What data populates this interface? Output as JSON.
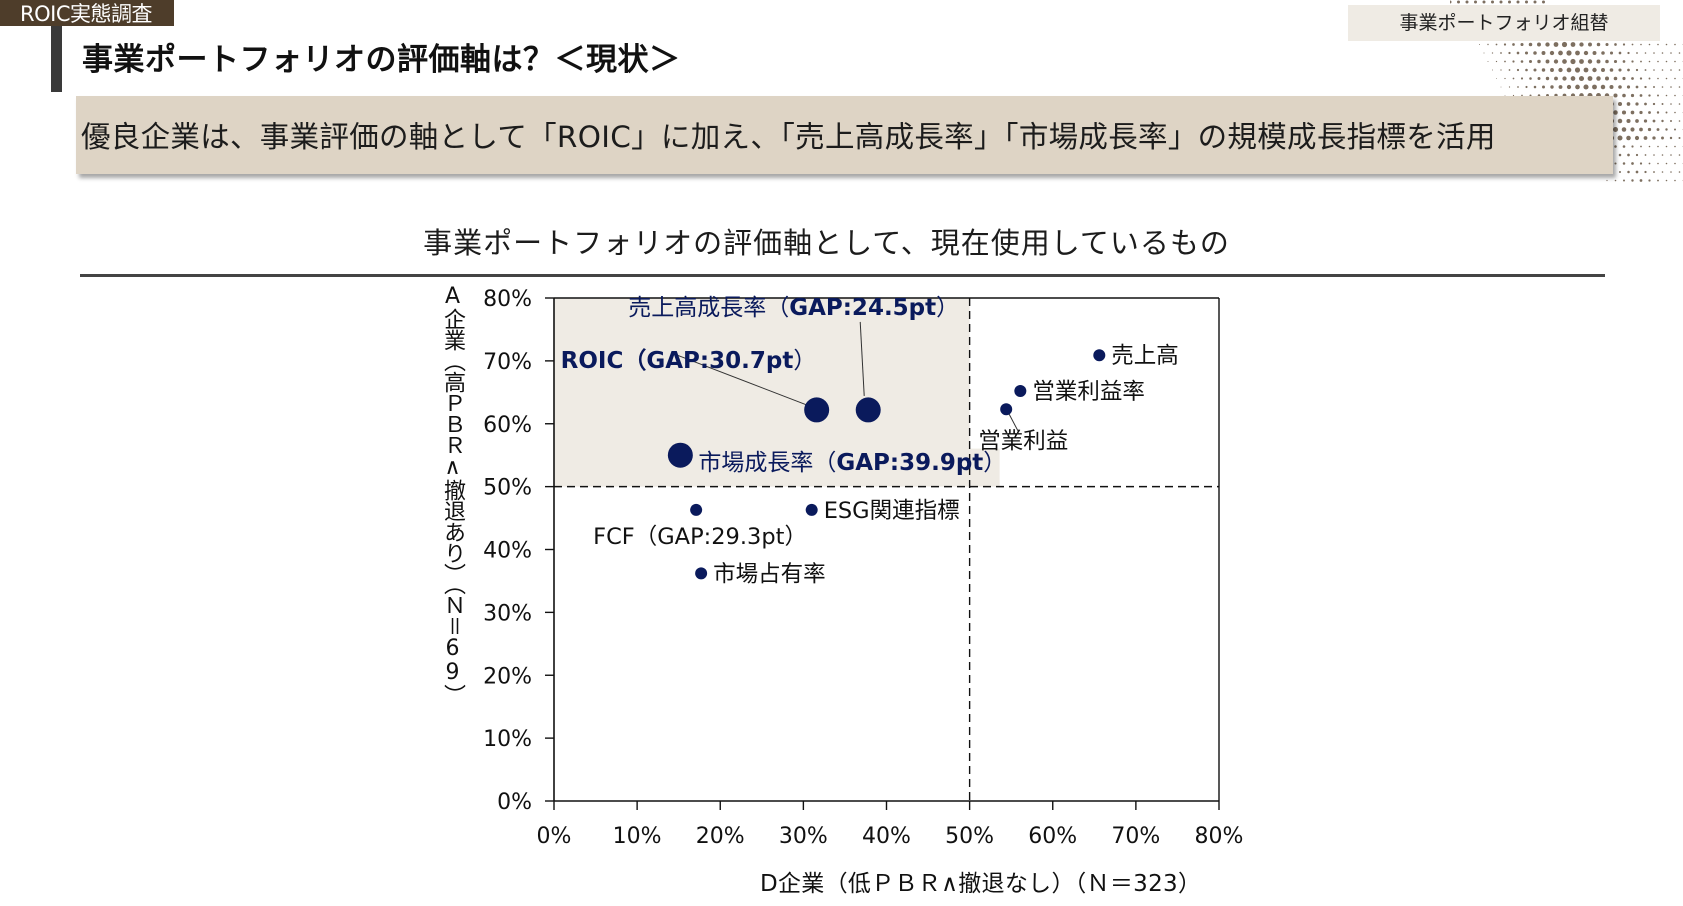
{
  "header": {
    "section_tag": "ROIC実態調査",
    "page_title": "事業ポートフォリオの評価軸は？＜現状＞",
    "category_tag": "事業ポートフォリオ組替"
  },
  "summary": {
    "text": "優良企業は、事業評価の軸として「ROIC」に加え、「売上高成長率」「市場成長率」の規模成長指標を活用"
  },
  "colors": {
    "section_tag_bg": "#4e3d2a",
    "summary_bg": "#ded4c5",
    "highlight_quadrant": "#efebe4",
    "point_color": "#0a1a5c"
  },
  "chart_data": {
    "type": "scatter",
    "title": "事業ポートフォリオの評価軸として、現在使用しているもの",
    "xlabel": "D企業（低ＰＢＲ∧撤退なし）（Ｎ＝323）",
    "ylabel": "A企業（高ＰＢＲ∧撤退あり）（Ｎ＝69）",
    "xlim": [
      0,
      80
    ],
    "ylim": [
      0,
      80
    ],
    "x_ticks": [
      "0%",
      "10%",
      "20%",
      "30%",
      "40%",
      "50%",
      "60%",
      "70%",
      "80%"
    ],
    "y_ticks": [
      "0%",
      "10%",
      "20%",
      "30%",
      "40%",
      "50%",
      "60%",
      "70%",
      "80%"
    ],
    "reference_lines": {
      "x": 50,
      "y": 50,
      "style": "dashed"
    },
    "highlight_region": {
      "x": [
        0,
        50
      ],
      "y": [
        50,
        80
      ]
    },
    "grid": false,
    "points": [
      {
        "name": "売上高成長率",
        "gap": "GAP:24.5pt",
        "label_prefix": "売上高成長率（",
        "label_suffix": "）",
        "x": 37.8,
        "y": 62.2,
        "size": "large",
        "highlight": true
      },
      {
        "name": "ROIC",
        "gap": "GAP:30.7pt",
        "label_prefix": "ROIC（",
        "label_suffix": "）",
        "x": 31.6,
        "y": 62.2,
        "size": "large",
        "highlight": true
      },
      {
        "name": "市場成長率",
        "gap": "GAP:39.9pt",
        "label_prefix": "市場成長率（",
        "label_suffix": "）",
        "x": 15.2,
        "y": 55.0,
        "size": "large",
        "highlight": true
      },
      {
        "name": "FCF",
        "gap": "GAP:29.3pt",
        "label_prefix": "FCF（",
        "label_suffix": "）",
        "x": 17.1,
        "y": 46.3,
        "size": "small",
        "highlight": false
      },
      {
        "name": "ESG関連指標",
        "gap": "",
        "label_prefix": "ESG関連指標",
        "label_suffix": "",
        "x": 31.0,
        "y": 46.3,
        "size": "small",
        "highlight": false
      },
      {
        "name": "市場占有率",
        "gap": "",
        "label_prefix": "市場占有率",
        "label_suffix": "",
        "x": 17.7,
        "y": 36.2,
        "size": "small",
        "highlight": false
      },
      {
        "name": "売上高",
        "gap": "",
        "label_prefix": "売上高",
        "label_suffix": "",
        "x": 65.6,
        "y": 70.9,
        "size": "small",
        "highlight": false
      },
      {
        "name": "営業利益率",
        "gap": "",
        "label_prefix": "営業利益率",
        "label_suffix": "",
        "x": 56.1,
        "y": 65.2,
        "size": "small",
        "highlight": false
      },
      {
        "name": "営業利益",
        "gap": "",
        "label_prefix": "営業利益",
        "label_suffix": "",
        "x": 54.4,
        "y": 62.3,
        "size": "small",
        "highlight": false
      }
    ]
  }
}
